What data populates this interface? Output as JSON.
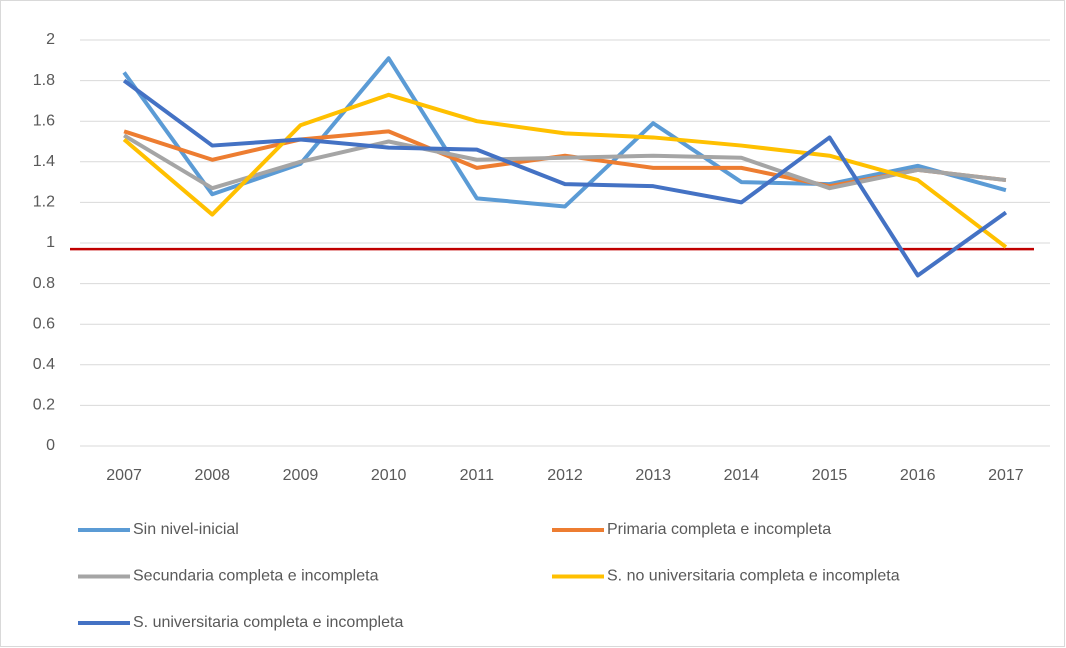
{
  "chart_data": {
    "type": "line",
    "categories": [
      "2007",
      "2008",
      "2009",
      "2010",
      "2011",
      "2012",
      "2013",
      "2014",
      "2015",
      "2016",
      "2017"
    ],
    "series": [
      {
        "name": "Sin nivel-inicial",
        "color": "#5b9bd5",
        "values": [
          1.84,
          1.24,
          1.39,
          1.91,
          1.22,
          1.18,
          1.59,
          1.3,
          1.29,
          1.38,
          1.26
        ]
      },
      {
        "name": "Primaria completa e incompleta",
        "color": "#ed7d31",
        "values": [
          1.55,
          1.41,
          1.51,
          1.55,
          1.37,
          1.43,
          1.37,
          1.37,
          1.28,
          1.36,
          1.31
        ]
      },
      {
        "name": "Secundaria completa e incompleta",
        "color": "#a5a5a5",
        "values": [
          1.53,
          1.27,
          1.4,
          1.5,
          1.41,
          1.42,
          1.43,
          1.42,
          1.27,
          1.36,
          1.31
        ]
      },
      {
        "name": "S. no universitaria completa e incompleta",
        "color": "#ffc000",
        "values": [
          1.51,
          1.14,
          1.58,
          1.73,
          1.6,
          1.54,
          1.52,
          1.48,
          1.43,
          1.31,
          0.98
        ]
      },
      {
        "name": "S. universitaria completa e incompleta",
        "color": "#4472c4",
        "values": [
          1.8,
          1.48,
          1.51,
          1.47,
          1.46,
          1.29,
          1.28,
          1.2,
          1.52,
          0.84,
          1.15
        ]
      }
    ],
    "reference_line": {
      "value": 0.97,
      "color": "#c00000"
    },
    "ylim": [
      0,
      2
    ],
    "yticks": [
      0,
      0.2,
      0.4,
      0.6,
      0.8,
      1,
      1.2,
      1.4,
      1.6,
      1.8,
      2
    ],
    "grid": true,
    "legend": "bottom"
  }
}
